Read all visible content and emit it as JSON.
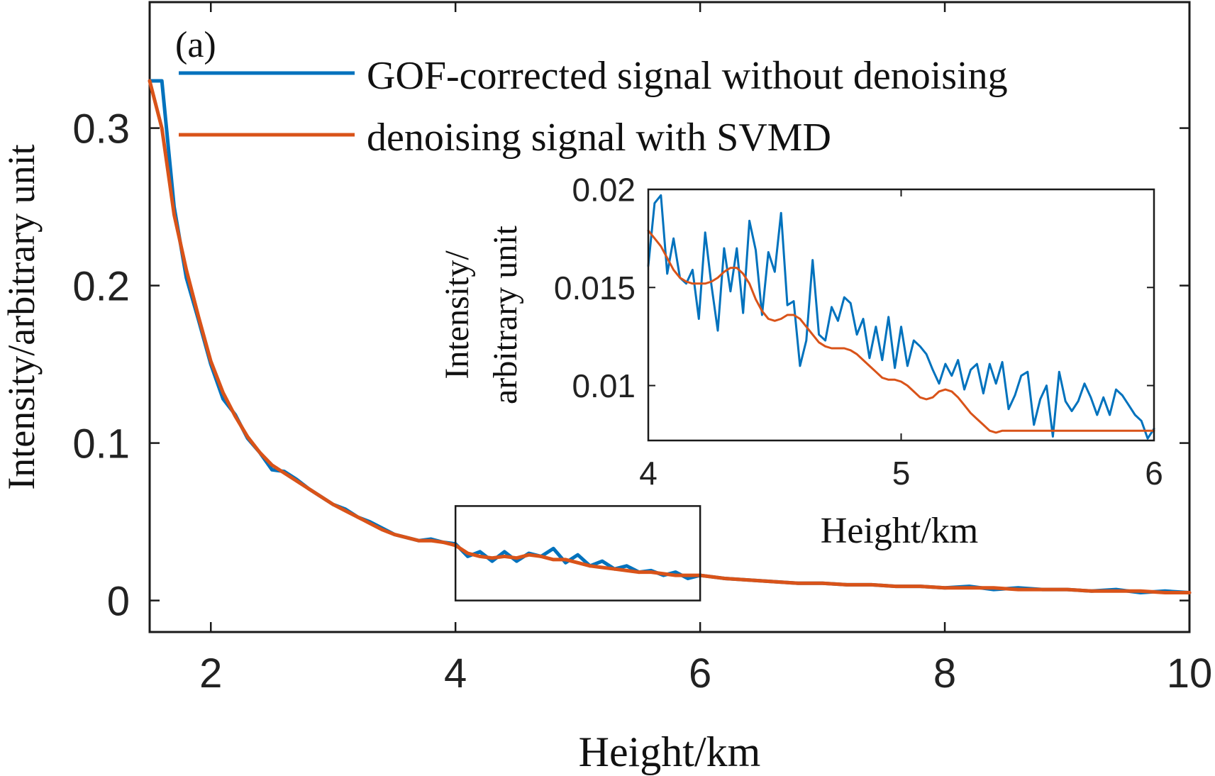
{
  "panel_label": "(a)",
  "chart_data": [
    {
      "type": "line",
      "xlabel": "Height/km",
      "ylabel": "Intensity/arbitrary unit",
      "xlim": [
        1.5,
        10
      ],
      "ylim": [
        -0.02,
        0.38
      ],
      "xticks": [
        2,
        4,
        6,
        8,
        10
      ],
      "xtick_labels": [
        "2",
        "4",
        "6",
        "8",
        "10"
      ],
      "yticks": [
        0,
        0.1,
        0.2,
        0.3
      ],
      "ytick_labels": [
        "0",
        "0.1",
        "0.2",
        "0.3"
      ],
      "grid": false,
      "legend_position": "top-left",
      "zoom_box": {
        "x": [
          4,
          6
        ],
        "y": [
          0,
          0.06
        ]
      },
      "x": [
        1.5,
        1.6,
        1.7,
        1.8,
        1.9,
        2.0,
        2.1,
        2.2,
        2.3,
        2.4,
        2.5,
        2.6,
        2.7,
        2.8,
        2.9,
        3.0,
        3.1,
        3.2,
        3.3,
        3.4,
        3.5,
        3.6,
        3.7,
        3.8,
        3.9,
        4.0,
        4.1,
        4.2,
        4.3,
        4.4,
        4.5,
        4.6,
        4.7,
        4.8,
        4.9,
        5.0,
        5.1,
        5.2,
        5.3,
        5.4,
        5.5,
        5.6,
        5.7,
        5.8,
        5.9,
        6.0,
        6.2,
        6.4,
        6.6,
        6.8,
        7.0,
        7.2,
        7.4,
        7.6,
        7.8,
        8.0,
        8.2,
        8.4,
        8.6,
        8.8,
        9.0,
        9.2,
        9.4,
        9.6,
        9.8,
        10.0
      ],
      "series": [
        {
          "name": "GOF-corrected signal without denoising",
          "color": "#0072BD",
          "values": [
            0.33,
            0.33,
            0.25,
            0.205,
            0.178,
            0.15,
            0.128,
            0.118,
            0.103,
            0.094,
            0.083,
            0.082,
            0.077,
            0.071,
            0.066,
            0.061,
            0.058,
            0.053,
            0.05,
            0.046,
            0.042,
            0.04,
            0.038,
            0.039,
            0.037,
            0.036,
            0.028,
            0.031,
            0.025,
            0.031,
            0.025,
            0.03,
            0.028,
            0.033,
            0.024,
            0.029,
            0.022,
            0.025,
            0.02,
            0.022,
            0.018,
            0.019,
            0.016,
            0.018,
            0.014,
            0.016,
            0.014,
            0.013,
            0.012,
            0.011,
            0.011,
            0.01,
            0.01,
            0.009,
            0.009,
            0.008,
            0.009,
            0.007,
            0.008,
            0.007,
            0.007,
            0.006,
            0.007,
            0.005,
            0.006,
            0.005
          ]
        },
        {
          "name": "denoising signal with SVMD",
          "color": "#D95319",
          "values": [
            0.33,
            0.3,
            0.245,
            0.21,
            0.18,
            0.152,
            0.132,
            0.117,
            0.104,
            0.094,
            0.086,
            0.081,
            0.076,
            0.071,
            0.066,
            0.061,
            0.057,
            0.053,
            0.049,
            0.045,
            0.042,
            0.04,
            0.038,
            0.038,
            0.037,
            0.035,
            0.03,
            0.028,
            0.027,
            0.028,
            0.027,
            0.029,
            0.028,
            0.026,
            0.026,
            0.024,
            0.022,
            0.021,
            0.02,
            0.019,
            0.018,
            0.018,
            0.017,
            0.016,
            0.016,
            0.016,
            0.014,
            0.013,
            0.012,
            0.011,
            0.011,
            0.01,
            0.01,
            0.009,
            0.009,
            0.008,
            0.008,
            0.008,
            0.007,
            0.007,
            0.007,
            0.006,
            0.006,
            0.006,
            0.005,
            0.005
          ]
        }
      ]
    },
    {
      "type": "line",
      "inset": true,
      "xlabel": "Height/km",
      "ylabel": "Intensity/ arbitrary unit",
      "ylabel_lines": [
        "Intensity/",
        "arbitrary unit"
      ],
      "xlim": [
        4,
        6
      ],
      "ylim": [
        0.0072,
        0.02
      ],
      "xticks": [
        4,
        5,
        6
      ],
      "xtick_labels": [
        "4",
        "5",
        "6"
      ],
      "yticks": [
        0.01,
        0.015,
        0.02
      ],
      "ytick_labels": [
        "0.01",
        "0.015",
        "0.02"
      ],
      "grid": false,
      "x": [
        4.0,
        4.025,
        4.05,
        4.075,
        4.1,
        4.125,
        4.15,
        4.175,
        4.2,
        4.225,
        4.25,
        4.275,
        4.3,
        4.325,
        4.35,
        4.375,
        4.4,
        4.425,
        4.45,
        4.475,
        4.5,
        4.525,
        4.55,
        4.575,
        4.6,
        4.625,
        4.65,
        4.675,
        4.7,
        4.725,
        4.75,
        4.775,
        4.8,
        4.825,
        4.85,
        4.875,
        4.9,
        4.925,
        4.95,
        4.975,
        5.0,
        5.025,
        5.05,
        5.075,
        5.1,
        5.125,
        5.15,
        5.175,
        5.2,
        5.225,
        5.25,
        5.275,
        5.3,
        5.325,
        5.35,
        5.375,
        5.4,
        5.425,
        5.45,
        5.475,
        5.5,
        5.525,
        5.55,
        5.575,
        5.6,
        5.625,
        5.65,
        5.675,
        5.7,
        5.725,
        5.75,
        5.775,
        5.8,
        5.825,
        5.85,
        5.875,
        5.9,
        5.925,
        5.95,
        5.975,
        6.0
      ],
      "series": [
        {
          "name": "GOF-corrected signal without denoising",
          "color": "#0072BD",
          "values": [
            0.0161,
            0.0193,
            0.0197,
            0.0157,
            0.0175,
            0.0155,
            0.0152,
            0.0159,
            0.0134,
            0.0178,
            0.0151,
            0.0128,
            0.017,
            0.0148,
            0.017,
            0.0137,
            0.0184,
            0.0169,
            0.0136,
            0.0168,
            0.0158,
            0.0188,
            0.0141,
            0.0143,
            0.011,
            0.0123,
            0.0164,
            0.0126,
            0.0123,
            0.014,
            0.0133,
            0.0145,
            0.0142,
            0.0126,
            0.0134,
            0.0114,
            0.013,
            0.0113,
            0.0135,
            0.0109,
            0.013,
            0.011,
            0.0123,
            0.012,
            0.0116,
            0.0108,
            0.0101,
            0.0111,
            0.0105,
            0.0113,
            0.0098,
            0.0108,
            0.0111,
            0.0096,
            0.0111,
            0.0101,
            0.0112,
            0.0088,
            0.0095,
            0.0105,
            0.0107,
            0.008,
            0.0093,
            0.01,
            0.0074,
            0.0107,
            0.0092,
            0.0087,
            0.0092,
            0.0101,
            0.0094,
            0.0085,
            0.0094,
            0.0085,
            0.0098,
            0.0095,
            0.009,
            0.0085,
            0.0082,
            0.0073,
            0.0078
          ]
        },
        {
          "name": "denoising signal with SVMD",
          "color": "#D95319",
          "values": [
            0.0179,
            0.0175,
            0.0171,
            0.0165,
            0.0159,
            0.0155,
            0.0153,
            0.0152,
            0.0152,
            0.0152,
            0.0153,
            0.0155,
            0.0158,
            0.016,
            0.016,
            0.0157,
            0.0152,
            0.0144,
            0.0138,
            0.0134,
            0.0133,
            0.0134,
            0.0136,
            0.0136,
            0.0134,
            0.013,
            0.0126,
            0.0122,
            0.012,
            0.0119,
            0.0119,
            0.0119,
            0.0118,
            0.0116,
            0.0113,
            0.011,
            0.0107,
            0.0104,
            0.0103,
            0.0103,
            0.0102,
            0.01,
            0.0097,
            0.0094,
            0.0093,
            0.0094,
            0.0097,
            0.0098,
            0.0097,
            0.0094,
            0.009,
            0.0086,
            0.0083,
            0.008,
            0.0077,
            0.0076,
            0.0077,
            0.0077,
            0.0077,
            0.0077,
            0.0077,
            0.0077,
            0.0077,
            0.0077,
            0.0077,
            0.0077,
            0.0077,
            0.0077,
            0.0077,
            0.0077,
            0.0077,
            0.0077,
            0.0077,
            0.0077,
            0.0077,
            0.0077,
            0.0077,
            0.0077,
            0.0077,
            0.0077,
            0.0077
          ]
        }
      ]
    }
  ]
}
